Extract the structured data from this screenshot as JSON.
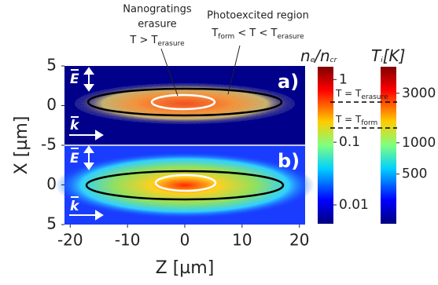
{
  "chart_data": {
    "type": "heatmap",
    "xlabel": "Z [µm]",
    "ylabel": "X [µm]",
    "xlim": [
      -21,
      21
    ],
    "xticks": [
      -20,
      -10,
      0,
      10,
      20
    ],
    "panels": [
      {
        "label": "a)",
        "ylim": [
          -5,
          5
        ],
        "yticks": [
          5,
          0,
          -5
        ],
        "y_inverted": false
      },
      {
        "label": "b)",
        "ylim": [
          -5,
          5
        ],
        "yticks": [
          0,
          5
        ],
        "y_inverted": true
      }
    ],
    "vectors": [
      "E",
      "k"
    ],
    "colorbars": [
      {
        "label": [
          "n",
          "e",
          "/n",
          "cr"
        ],
        "scale": "log",
        "ylim": [
          0.005,
          1.6
        ],
        "yticks": [
          1,
          0.1,
          0.01
        ]
      },
      {
        "label": [
          "T",
          "i",
          "[K]"
        ],
        "scale": "log",
        "ylim": [
          166,
          5400
        ],
        "yticks": [
          3000,
          1000,
          500
        ]
      }
    ],
    "annotations": {
      "erasure_region": [
        "Nanogratings",
        "erasure"
      ],
      "erasure_condition": [
        "T > T",
        "erasure"
      ],
      "photoexcited_region": "Photoexcited region",
      "photoexcited_condition": [
        "T",
        "form",
        " < T < T",
        "erasure"
      ],
      "level_erasure": [
        "T = T",
        "erasure"
      ],
      "level_form": [
        "T = T",
        "form"
      ]
    }
  }
}
